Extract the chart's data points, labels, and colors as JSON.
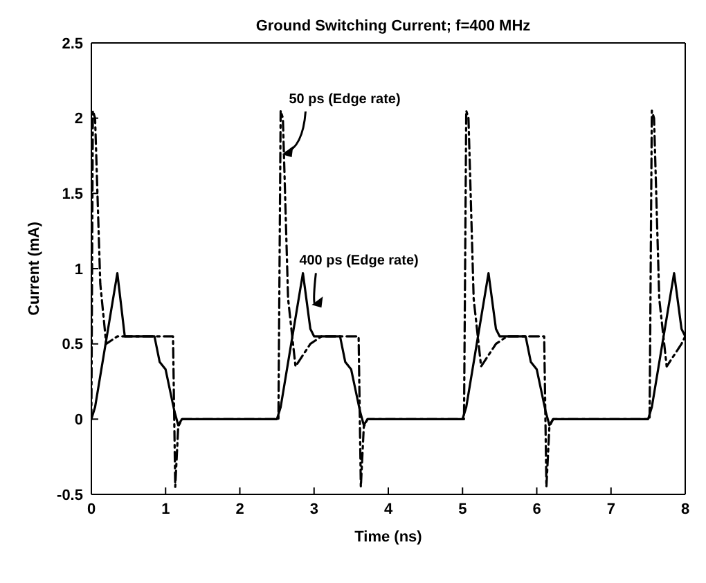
{
  "chart_data": {
    "type": "line",
    "title": "Ground Switching Current; f=400 MHz",
    "xlabel": "Time (ns)",
    "ylabel": "Current (mA)",
    "xlim": [
      0,
      8
    ],
    "xticks": [
      0,
      1,
      2,
      3,
      4,
      5,
      6,
      7,
      8
    ],
    "ylim": [
      -0.5,
      2.5
    ],
    "yticks": [
      -0.5,
      0,
      0.5,
      1,
      1.5,
      2,
      2.5
    ],
    "grid": false,
    "marker": "none",
    "series": [
      {
        "color": "#000000",
        "line_style": "dashed",
        "x": [
          0,
          0.02,
          0.05,
          0.12,
          0.2,
          0.35,
          1.1,
          1.13,
          1.17,
          1.22,
          2.52,
          2.55,
          2.58,
          2.65,
          2.75,
          2.95,
          3.1,
          3.6,
          3.63,
          3.67,
          3.72,
          5.02,
          5.05,
          5.08,
          5.15,
          5.25,
          5.45,
          5.6,
          6.1,
          6.13,
          6.17,
          6.22,
          7.52,
          7.55,
          7.58,
          7.65,
          7.75,
          7.95,
          8
        ],
        "values": [
          0,
          2.05,
          2,
          0.9,
          0.5,
          0.55,
          0.55,
          -0.45,
          -0.05,
          0,
          0,
          2.05,
          2,
          0.8,
          0.35,
          0.5,
          0.55,
          0.55,
          -0.45,
          -0.05,
          0,
          0,
          2.05,
          2,
          0.8,
          0.35,
          0.5,
          0.55,
          0.55,
          -0.45,
          -0.05,
          0,
          0,
          2.05,
          2,
          0.8,
          0.35,
          0.5,
          0.55
        ]
      },
      {
        "color": "#000000",
        "line_style": "solid",
        "x": [
          0,
          0.05,
          0.35,
          0.45,
          0.85,
          0.92,
          1,
          1.12,
          1.17,
          1.22,
          2.5,
          2.55,
          2.85,
          2.95,
          3,
          3.35,
          3.42,
          3.5,
          3.62,
          3.67,
          3.72,
          5,
          5.05,
          5.35,
          5.45,
          5.5,
          5.85,
          5.92,
          6,
          6.12,
          6.17,
          6.22,
          7.5,
          7.55,
          7.85,
          7.95,
          8
        ],
        "values": [
          0,
          0.08,
          0.97,
          0.55,
          0.55,
          0.38,
          0.33,
          0.05,
          -0.04,
          0,
          0,
          0.08,
          0.97,
          0.6,
          0.55,
          0.55,
          0.38,
          0.33,
          0.05,
          -0.04,
          0,
          0,
          0.08,
          0.97,
          0.6,
          0.55,
          0.55,
          0.38,
          0.33,
          0.05,
          -0.04,
          0,
          0,
          0.08,
          0.97,
          0.6,
          0.55
        ]
      }
    ],
    "annotations": [
      {
        "text": "50 ps (Edge rate)",
        "x": 2.55,
        "y": 1.75
      },
      {
        "text": "400 ps (Edge rate)",
        "x": 2.95,
        "y": 0.75
      }
    ]
  }
}
